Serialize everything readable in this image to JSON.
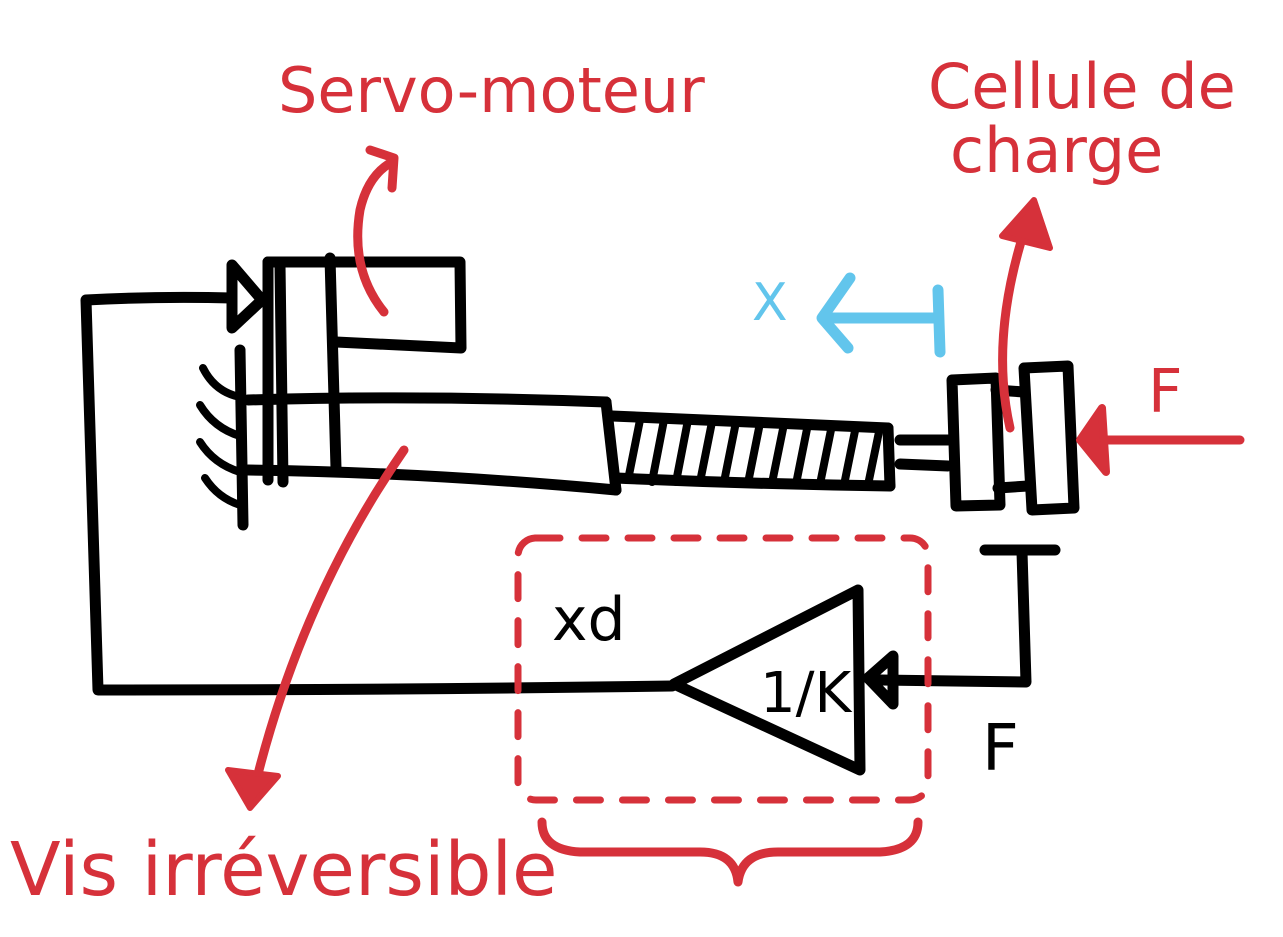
{
  "labels": {
    "servo_moteur": "Servo-moteur",
    "cellule_line1": "Cellule de",
    "cellule_line2": "charge",
    "vis_irreversible": "Vis irréversible",
    "x": "X",
    "f_top": "F",
    "f_bottom": "F",
    "xd": "xd",
    "gain": "1/K"
  },
  "colors": {
    "annotation": "#d6313a",
    "displacement": "#62c5ec",
    "ink": "#000000"
  }
}
